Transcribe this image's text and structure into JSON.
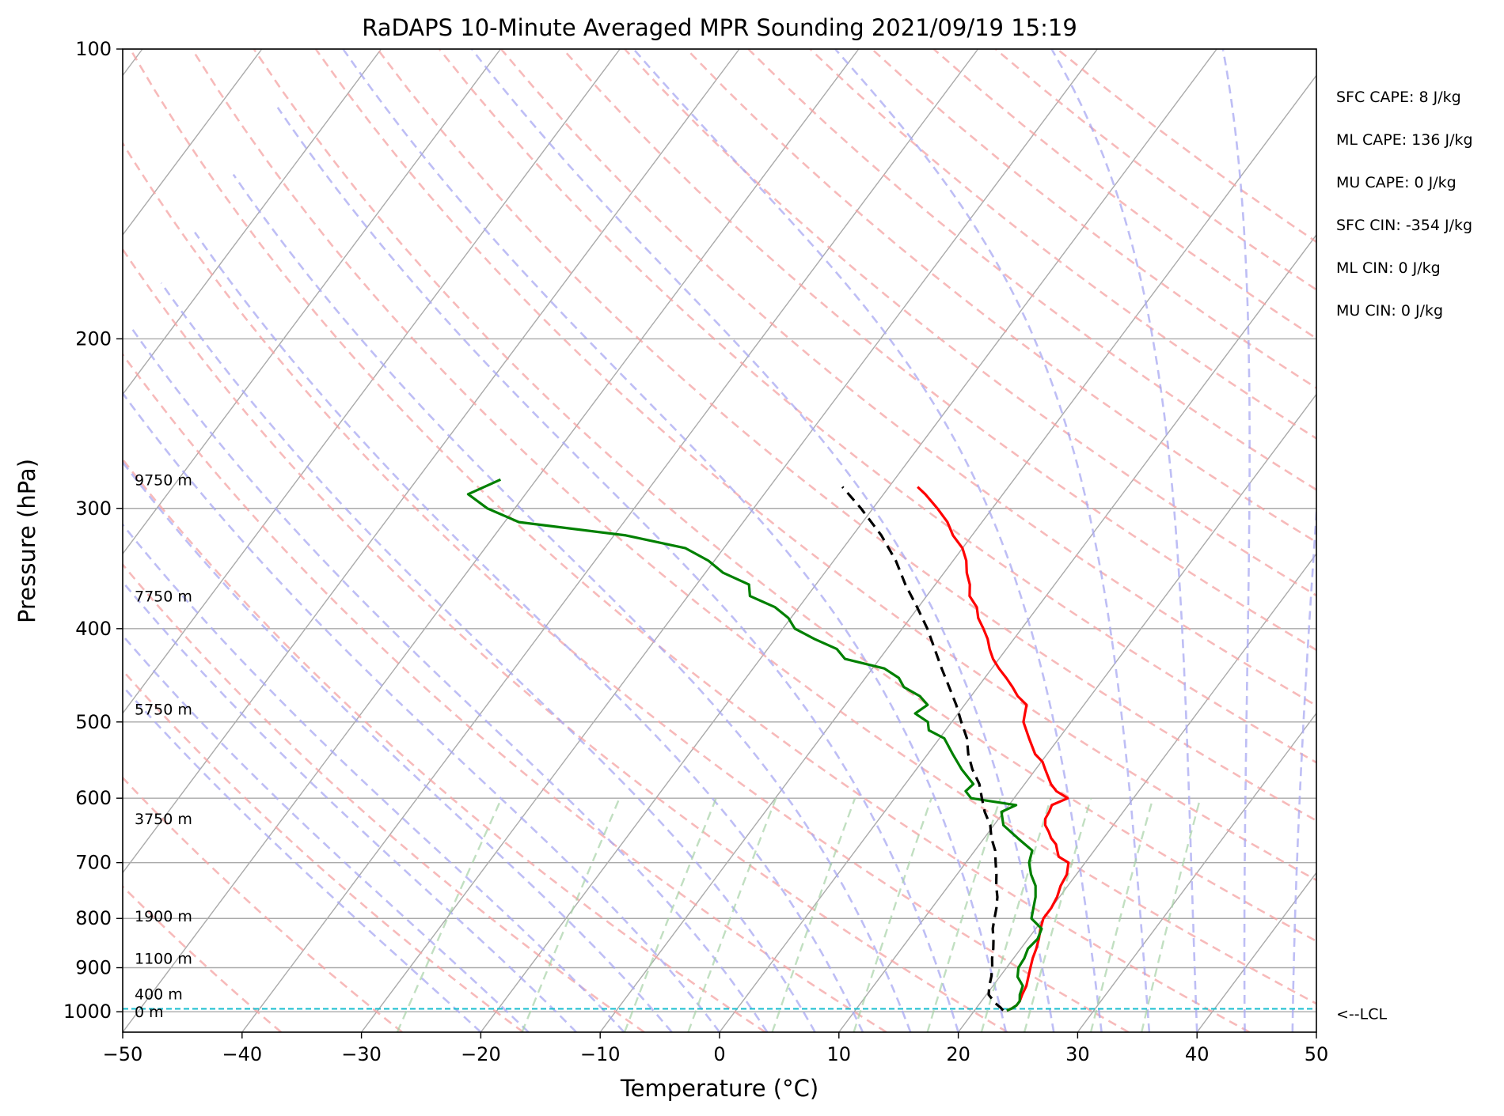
{
  "chart_data": {
    "type": "line",
    "subtype": "skew-t log-p",
    "title": "RaDAPS 10-Minute Averaged MPR Sounding 2021/09/19 15:19",
    "xlabel": "Temperature (°C)",
    "ylabel": "Pressure (hPa)",
    "xlim": [
      -50,
      50
    ],
    "ylim": [
      1050,
      100
    ],
    "y_scale": "log",
    "grid": true,
    "x_ticks": [
      -50,
      -40,
      -30,
      -20,
      -10,
      0,
      10,
      20,
      30,
      40,
      50
    ],
    "x_tick_labels": [
      "−50",
      "−40",
      "−30",
      "−20",
      "−10",
      "0",
      "10",
      "20",
      "30",
      "40",
      "50"
    ],
    "y_ticks": [
      100,
      200,
      300,
      400,
      500,
      600,
      700,
      800,
      900,
      1000
    ],
    "y_tick_labels": [
      "100",
      "200",
      "300",
      "400",
      "500",
      "600",
      "700",
      "800",
      "900",
      "1000"
    ],
    "height_labels": [
      {
        "text": "9750 m",
        "p": 280
      },
      {
        "text": "7750 m",
        "p": 370
      },
      {
        "text": "5750 m",
        "p": 485
      },
      {
        "text": "3750 m",
        "p": 630
      },
      {
        "text": "1900 m",
        "p": 795
      },
      {
        "text": "1100 m",
        "p": 880
      },
      {
        "text": "400 m",
        "p": 958
      },
      {
        "text": "0 m",
        "p": 1000
      }
    ],
    "stats": [
      "SFC CAPE: 8 J/kg",
      "ML CAPE: 136 J/kg",
      "MU CAPE: 0 J/kg",
      "SFC CIN: -354 J/kg",
      "ML CIN: 0 J/kg",
      "MU CIN: 0 J/kg"
    ],
    "lcl": {
      "label": "<--LCL",
      "p": 993
    },
    "series": [
      {
        "role": "temperature",
        "color": "#ff0000",
        "p": [
          997,
          992,
          985,
          975,
          960,
          940,
          920,
          900,
          880,
          860,
          840,
          820,
          800,
          780,
          760,
          740,
          720,
          700,
          690,
          680,
          670,
          660,
          650,
          640,
          630,
          620,
          610,
          600,
          590,
          580,
          560,
          550,
          540,
          520,
          500,
          490,
          480,
          470,
          460,
          450,
          440,
          430,
          420,
          410,
          400,
          390,
          380,
          370,
          360,
          350,
          340,
          330,
          320,
          310,
          300,
          290,
          285
        ],
        "t": [
          22.7,
          23.0,
          23.2,
          23.2,
          23.0,
          22.8,
          22.4,
          22.0,
          21.6,
          21.3,
          20.9,
          20.4,
          20.0,
          20.0,
          19.8,
          19.4,
          19.2,
          18.6,
          17.4,
          16.9,
          16.4,
          15.6,
          15.0,
          14.3,
          13.9,
          13.8,
          13.6,
          14.5,
          13.1,
          12.2,
          10.8,
          10.1,
          9.0,
          7.5,
          6.0,
          5.6,
          5.2,
          3.9,
          2.9,
          1.8,
          0.6,
          -0.5,
          -1.4,
          -2.2,
          -3.2,
          -4.3,
          -5.1,
          -6.4,
          -7.1,
          -8.1,
          -8.9,
          -10.0,
          -11.6,
          -12.9,
          -14.6,
          -16.5,
          -17.6
        ]
      },
      {
        "role": "dewpoint",
        "color": "#008000",
        "p": [
          997,
          992,
          985,
          975,
          960,
          940,
          920,
          900,
          880,
          860,
          840,
          820,
          800,
          780,
          760,
          740,
          720,
          700,
          680,
          660,
          640,
          620,
          610,
          600,
          590,
          580,
          560,
          540,
          520,
          510,
          500,
          490,
          480,
          470,
          460,
          450,
          440,
          430,
          420,
          410,
          400,
          390,
          380,
          370,
          360,
          350,
          340,
          330,
          320,
          310,
          300,
          290,
          280
        ],
        "t": [
          22.7,
          23.0,
          23.2,
          23.2,
          22.8,
          22.5,
          21.5,
          21.0,
          20.9,
          20.6,
          20.8,
          20.5,
          19.0,
          18.5,
          18.0,
          17.3,
          16.2,
          15.3,
          14.8,
          12.8,
          10.8,
          9.8,
          10.6,
          6.4,
          5.5,
          5.7,
          3.8,
          2.1,
          0.4,
          -1.4,
          -2.0,
          -3.6,
          -3.1,
          -4.3,
          -6.2,
          -7.2,
          -9.0,
          -12.9,
          -14.2,
          -16.7,
          -19.0,
          -20.2,
          -22.0,
          -24.8,
          -25.6,
          -28.5,
          -30.5,
          -33.2,
          -39.0,
          -48.8,
          -52.3,
          -54.8,
          -53.0
        ]
      },
      {
        "role": "parcel",
        "color": "#000000",
        "dashed": true,
        "p": [
          997,
          990,
          980,
          960,
          940,
          920,
          900,
          880,
          860,
          840,
          820,
          800,
          780,
          760,
          740,
          720,
          700,
          680,
          660,
          640,
          620,
          600,
          580,
          560,
          540,
          520,
          500,
          480,
          460,
          440,
          420,
          400,
          380,
          360,
          340,
          320,
          300,
          285
        ],
        "t": [
          22.4,
          22.0,
          21.3,
          20.2,
          19.7,
          19.3,
          18.8,
          18.2,
          17.7,
          17.1,
          16.4,
          15.9,
          15.4,
          14.8,
          14.0,
          13.3,
          12.5,
          11.7,
          10.6,
          9.7,
          8.4,
          7.3,
          6.2,
          4.7,
          3.4,
          2.3,
          0.8,
          -0.7,
          -2.4,
          -4.2,
          -6.0,
          -7.9,
          -10.1,
          -12.5,
          -14.8,
          -17.6,
          -21.0,
          -23.9
        ]
      }
    ]
  }
}
